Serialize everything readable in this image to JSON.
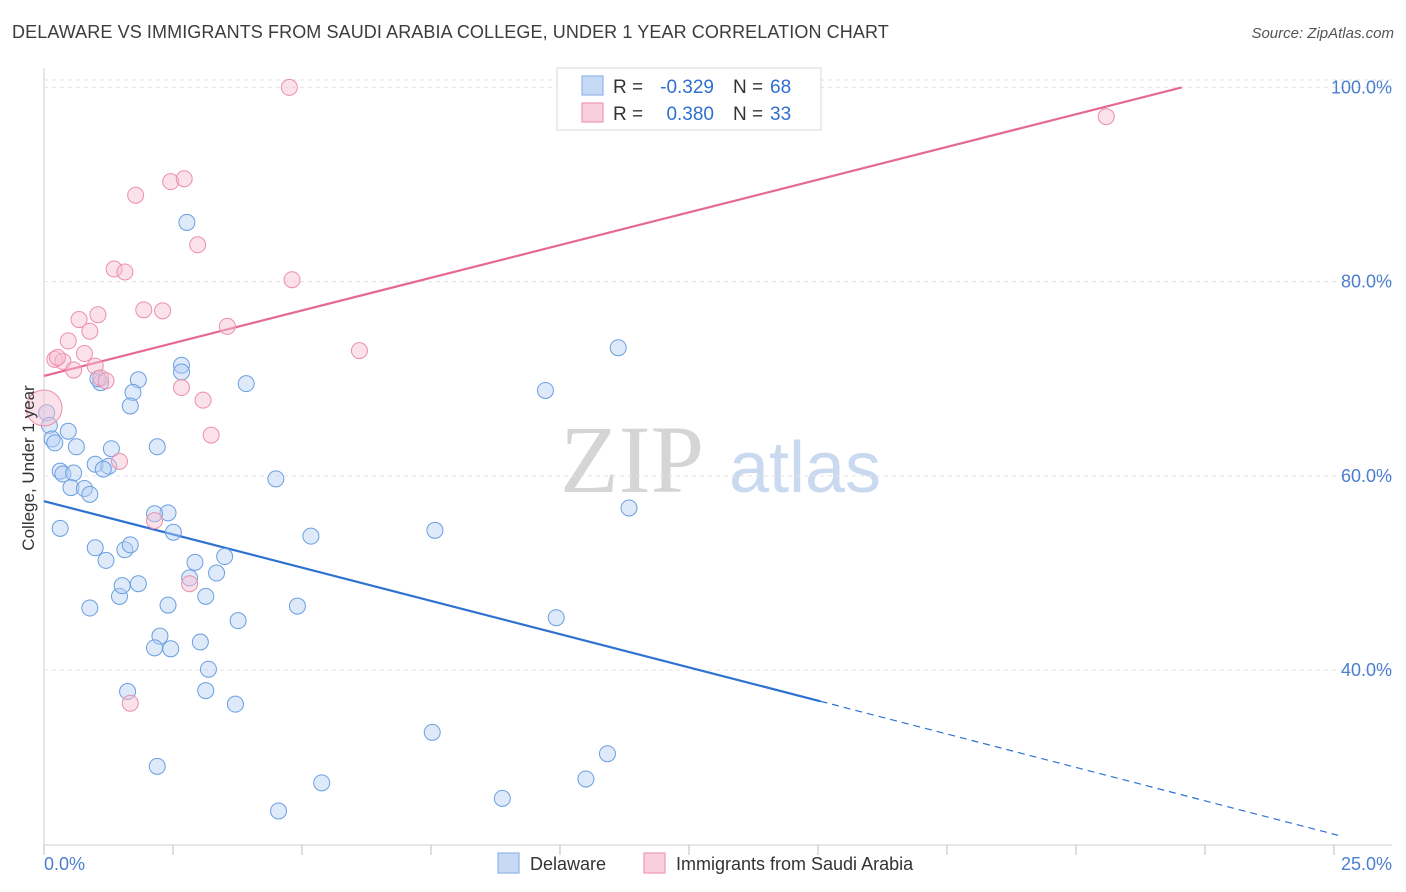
{
  "title": "DELAWARE VS IMMIGRANTS FROM SAUDI ARABIA COLLEGE, UNDER 1 YEAR CORRELATION CHART",
  "source": "Source: ZipAtlas.com",
  "watermark": {
    "zip": "ZIP",
    "atlas": "atlas"
  },
  "legend": {
    "r_label": "R =",
    "n_label": "N =",
    "series": [
      {
        "name": "Delaware",
        "r": "-0.329",
        "n": "68",
        "color": "#8fb5ea",
        "fill": "#c7daf5"
      },
      {
        "name": "Immigrants from Saudi Arabia",
        "r": "0.380",
        "n": "33",
        "color": "#ef9ab4",
        "fill": "#f9cfdc"
      }
    ]
  },
  "chart_data": {
    "type": "scatter",
    "title": "DELAWARE VS IMMIGRANTS FROM SAUDI ARABIA COLLEGE, UNDER 1 YEAR CORRELATION CHART",
    "xlabel": "",
    "ylabel": "College, Under 1 year",
    "xlim": [
      0,
      25
    ],
    "ylim": [
      22,
      102
    ],
    "x_tick_labels": [
      "0.0%",
      "25.0%"
    ],
    "y_ticks": [
      40,
      60,
      80,
      100
    ],
    "y_tick_labels": [
      "40.0%",
      "60.0%",
      "80.0%",
      "100.0%"
    ],
    "grid": true,
    "series": [
      {
        "name": "Delaware",
        "color": "#6a9fe0",
        "points": [
          [
            0.05,
            66.5
          ],
          [
            0.1,
            65.2
          ],
          [
            0.15,
            63.8
          ],
          [
            0.2,
            63.4
          ],
          [
            0.45,
            64.6
          ],
          [
            0.6,
            63.0
          ],
          [
            0.3,
            60.5
          ],
          [
            0.35,
            60.2
          ],
          [
            0.55,
            60.3
          ],
          [
            0.5,
            58.8
          ],
          [
            0.75,
            58.7
          ],
          [
            0.85,
            58.1
          ],
          [
            0.95,
            61.2
          ],
          [
            1.2,
            61.0
          ],
          [
            1.25,
            62.8
          ],
          [
            0.3,
            54.6
          ],
          [
            0.95,
            52.6
          ],
          [
            1.15,
            51.3
          ],
          [
            1.5,
            52.4
          ],
          [
            1.6,
            52.9
          ],
          [
            1.75,
            48.9
          ],
          [
            1.4,
            47.6
          ],
          [
            1.45,
            48.7
          ],
          [
            0.85,
            46.4
          ],
          [
            2.3,
            56.2
          ],
          [
            2.05,
            56.1
          ],
          [
            2.4,
            54.2
          ],
          [
            2.7,
            49.5
          ],
          [
            2.8,
            51.1
          ],
          [
            3.35,
            51.7
          ],
          [
            3.2,
            50.0
          ],
          [
            3.0,
            47.6
          ],
          [
            2.3,
            46.7
          ],
          [
            2.15,
            43.5
          ],
          [
            2.05,
            42.3
          ],
          [
            2.35,
            42.2
          ],
          [
            2.9,
            42.9
          ],
          [
            3.05,
            40.1
          ],
          [
            3.0,
            37.9
          ],
          [
            3.6,
            45.1
          ],
          [
            3.55,
            36.5
          ],
          [
            1.55,
            37.8
          ],
          [
            2.1,
            30.1
          ],
          [
            4.3,
            59.7
          ],
          [
            4.95,
            53.8
          ],
          [
            4.7,
            46.6
          ],
          [
            5.15,
            28.4
          ],
          [
            4.35,
            25.5
          ],
          [
            7.25,
            54.4
          ],
          [
            7.2,
            33.6
          ],
          [
            8.5,
            26.8
          ],
          [
            9.3,
            68.8
          ],
          [
            9.5,
            45.4
          ],
          [
            10.05,
            28.8
          ],
          [
            10.45,
            31.4
          ],
          [
            10.65,
            73.2
          ],
          [
            10.85,
            56.7
          ],
          [
            2.55,
            71.4
          ],
          [
            2.55,
            70.7
          ],
          [
            1.75,
            69.9
          ],
          [
            1.05,
            69.6
          ],
          [
            1.65,
            68.6
          ],
          [
            1.6,
            67.2
          ],
          [
            3.75,
            69.5
          ],
          [
            2.65,
            86.1
          ],
          [
            2.1,
            63.0
          ],
          [
            1.0,
            70.0
          ],
          [
            1.1,
            60.7
          ]
        ]
      },
      {
        "name": "Immigrants from Saudi Arabia",
        "color": "#ec8fab",
        "points": [
          [
            0.0,
            67.0
          ],
          [
            0.2,
            72.0
          ],
          [
            0.35,
            71.8
          ],
          [
            0.45,
            73.9
          ],
          [
            0.55,
            70.9
          ],
          [
            0.65,
            76.1
          ],
          [
            0.75,
            72.6
          ],
          [
            0.85,
            74.9
          ],
          [
            0.95,
            71.3
          ],
          [
            1.0,
            76.6
          ],
          [
            1.05,
            70.1
          ],
          [
            1.15,
            69.8
          ],
          [
            1.3,
            81.3
          ],
          [
            1.5,
            81.0
          ],
          [
            1.7,
            88.9
          ],
          [
            1.85,
            77.1
          ],
          [
            2.2,
            77.0
          ],
          [
            2.35,
            90.3
          ],
          [
            2.6,
            90.6
          ],
          [
            2.55,
            69.1
          ],
          [
            2.85,
            83.8
          ],
          [
            2.95,
            67.8
          ],
          [
            3.1,
            64.2
          ],
          [
            3.4,
            75.4
          ],
          [
            4.6,
            80.2
          ],
          [
            4.55,
            100.0
          ],
          [
            5.85,
            72.9
          ],
          [
            1.4,
            61.5
          ],
          [
            1.6,
            36.6
          ],
          [
            2.05,
            55.4
          ],
          [
            2.7,
            48.9
          ],
          [
            19.7,
            97.0
          ],
          [
            0.25,
            72.2
          ]
        ]
      }
    ],
    "trend_lines": [
      {
        "series": "Delaware",
        "x": [
          0,
          14.4
        ],
        "y": [
          57.4,
          36.8
        ],
        "dashed_extension": {
          "x": [
            14.4,
            24.0
          ],
          "y": [
            36.8,
            23.0
          ]
        }
      },
      {
        "series": "Immigrants from Saudi Arabia",
        "x": [
          0,
          21.1
        ],
        "y": [
          70.3,
          100.0
        ]
      }
    ]
  }
}
